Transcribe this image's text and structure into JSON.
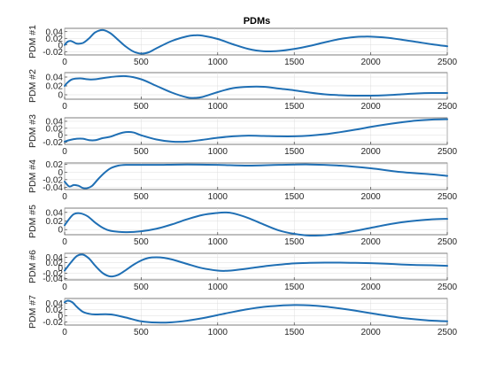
{
  "chart_data": {
    "type": "line",
    "title": "PDMs",
    "xlim": [
      0,
      2500
    ],
    "xticks": [
      0,
      500,
      1000,
      1500,
      2000,
      2500
    ],
    "grid": true,
    "series_color": "#1f6fb4",
    "panels": [
      {
        "ylabel": "PDM #1",
        "ylim": [
          -0.03,
          0.05
        ],
        "yticks": [
          -0.02,
          0,
          0.02,
          0.04
        ],
        "yticklabels": [
          "-0.02",
          "0",
          "0.02",
          "0.04"
        ],
        "x": [
          0,
          20,
          40,
          60,
          80,
          120,
          160,
          200,
          250,
          300,
          350,
          400,
          450,
          500,
          550,
          600,
          700,
          800,
          850,
          900,
          1000,
          1100,
          1200,
          1300,
          1400,
          1500,
          1600,
          1700,
          1800,
          1900,
          1950,
          2000,
          2100,
          2200,
          2300,
          2400,
          2500
        ],
        "y": [
          0.0,
          0.01,
          0.012,
          0.008,
          0.004,
          0.006,
          0.02,
          0.038,
          0.045,
          0.035,
          0.015,
          -0.005,
          -0.02,
          -0.026,
          -0.022,
          -0.01,
          0.012,
          0.026,
          0.029,
          0.028,
          0.018,
          0.002,
          -0.012,
          -0.019,
          -0.018,
          -0.012,
          -0.003,
          0.008,
          0.018,
          0.024,
          0.025,
          0.025,
          0.022,
          0.016,
          0.009,
          0.002,
          -0.004
        ]
      },
      {
        "ylabel": "PDM #2",
        "ylim": [
          -0.01,
          0.05
        ],
        "yticks": [
          0,
          0.02,
          0.04
        ],
        "yticklabels": [
          "0",
          "0.02",
          "0.04"
        ],
        "x": [
          0,
          20,
          50,
          100,
          150,
          200,
          300,
          400,
          500,
          600,
          700,
          800,
          850,
          900,
          1000,
          1100,
          1200,
          1300,
          1400,
          1500,
          1600,
          1700,
          1800,
          1900,
          2000,
          2100,
          2200,
          2300,
          2400,
          2500
        ],
        "y": [
          0.02,
          0.028,
          0.035,
          0.037,
          0.035,
          0.035,
          0.04,
          0.042,
          0.035,
          0.02,
          0.005,
          -0.006,
          -0.007,
          -0.005,
          0.006,
          0.015,
          0.018,
          0.018,
          0.014,
          0.01,
          0.005,
          0.001,
          -0.001,
          -0.002,
          -0.002,
          -0.001,
          0.001,
          0.003,
          0.004,
          0.004
        ]
      },
      {
        "ylabel": "PDM #3",
        "ylim": [
          -0.026,
          0.05
        ],
        "yticks": [
          -0.02,
          0,
          0.02,
          0.04
        ],
        "yticklabels": [
          "-0.02",
          "0",
          "0.02",
          "0.04"
        ],
        "x": [
          0,
          30,
          80,
          120,
          160,
          200,
          250,
          300,
          350,
          400,
          450,
          500,
          600,
          700,
          800,
          900,
          1000,
          1100,
          1200,
          1300,
          1400,
          1500,
          1600,
          1700,
          1800,
          1900,
          2000,
          2100,
          2200,
          2300,
          2400,
          2500
        ],
        "y": [
          -0.018,
          -0.014,
          -0.01,
          -0.01,
          -0.014,
          -0.014,
          -0.008,
          -0.004,
          0.004,
          0.009,
          0.008,
          0.0,
          -0.012,
          -0.018,
          -0.018,
          -0.013,
          -0.007,
          -0.003,
          -0.001,
          -0.002,
          -0.003,
          -0.003,
          -0.001,
          0.003,
          0.009,
          0.016,
          0.024,
          0.031,
          0.037,
          0.042,
          0.045,
          0.046
        ]
      },
      {
        "ylabel": "PDM #4",
        "ylim": [
          -0.046,
          0.024
        ],
        "yticks": [
          -0.04,
          -0.02,
          0,
          0.02
        ],
        "yticklabels": [
          "-0.04",
          "-0.02",
          "0",
          "0.02"
        ],
        "x": [
          0,
          30,
          60,
          90,
          120,
          150,
          180,
          220,
          260,
          300,
          350,
          400,
          500,
          600,
          800,
          1000,
          1200,
          1400,
          1600,
          1800,
          2000,
          2200,
          2400,
          2500
        ],
        "y": [
          -0.025,
          -0.038,
          -0.034,
          -0.036,
          -0.042,
          -0.042,
          -0.036,
          -0.018,
          -0.002,
          0.01,
          0.017,
          0.019,
          0.019,
          0.019,
          0.02,
          0.019,
          0.017,
          0.019,
          0.02,
          0.017,
          0.01,
          0.0,
          -0.006,
          -0.01
        ]
      },
      {
        "ylabel": "PDM #5",
        "ylim": [
          -0.012,
          0.05
        ],
        "yticks": [
          0,
          0.02,
          0.04
        ],
        "yticklabels": [
          "0",
          "0.02",
          "0.04"
        ],
        "x": [
          0,
          30,
          60,
          100,
          150,
          200,
          250,
          300,
          400,
          500,
          600,
          700,
          800,
          900,
          1000,
          1050,
          1100,
          1200,
          1300,
          1400,
          1500,
          1600,
          1700,
          1800,
          1900,
          2000,
          2100,
          2200,
          2300,
          2400,
          2500
        ],
        "y": [
          0.01,
          0.025,
          0.036,
          0.038,
          0.031,
          0.016,
          0.004,
          -0.003,
          -0.006,
          -0.004,
          0.002,
          0.012,
          0.024,
          0.034,
          0.039,
          0.04,
          0.038,
          0.027,
          0.012,
          -0.002,
          -0.01,
          -0.014,
          -0.013,
          -0.009,
          -0.003,
          0.004,
          0.011,
          0.017,
          0.021,
          0.024,
          0.025
        ]
      },
      {
        "ylabel": "PDM #6",
        "ylim": [
          -0.045,
          0.055
        ],
        "yticks": [
          -0.04,
          -0.02,
          0,
          0.02,
          0.04
        ],
        "yticklabels": [
          "-0.04",
          "-0.02",
          "0",
          "0.02",
          "0.04"
        ],
        "x": [
          0,
          40,
          80,
          120,
          160,
          200,
          250,
          300,
          350,
          400,
          450,
          500,
          550,
          600,
          650,
          700,
          800,
          900,
          1000,
          1050,
          1100,
          1200,
          1300,
          1400,
          1500,
          1600,
          1700,
          1800,
          1900,
          2000,
          2100,
          2200,
          2300,
          2400,
          2500
        ],
        "y": [
          -0.01,
          0.02,
          0.045,
          0.05,
          0.035,
          0.008,
          -0.02,
          -0.032,
          -0.026,
          -0.008,
          0.012,
          0.028,
          0.038,
          0.04,
          0.038,
          0.032,
          0.015,
          -0.001,
          -0.01,
          -0.011,
          -0.009,
          -0.002,
          0.006,
          0.012,
          0.017,
          0.019,
          0.02,
          0.02,
          0.019,
          0.018,
          0.016,
          0.013,
          0.011,
          0.01,
          0.008
        ]
      },
      {
        "ylabel": "PDM #7",
        "ylim": [
          -0.03,
          0.055
        ],
        "yticks": [
          -0.02,
          0,
          0.02,
          0.04
        ],
        "yticklabels": [
          "-0.02",
          "0",
          "0.02",
          "0.04"
        ],
        "x": [
          0,
          20,
          50,
          80,
          120,
          160,
          200,
          300,
          400,
          500,
          600,
          700,
          800,
          900,
          1000,
          1100,
          1200,
          1300,
          1400,
          1500,
          1600,
          1700,
          1800,
          1900,
          2000,
          2100,
          2200,
          2300,
          2400,
          2500
        ],
        "y": [
          0.043,
          0.048,
          0.043,
          0.028,
          0.012,
          0.006,
          0.004,
          0.004,
          -0.006,
          -0.018,
          -0.022,
          -0.021,
          -0.016,
          -0.008,
          0.002,
          0.012,
          0.021,
          0.028,
          0.032,
          0.034,
          0.033,
          0.029,
          0.023,
          0.016,
          0.008,
          0.0,
          -0.007,
          -0.012,
          -0.016,
          -0.018
        ]
      }
    ]
  }
}
